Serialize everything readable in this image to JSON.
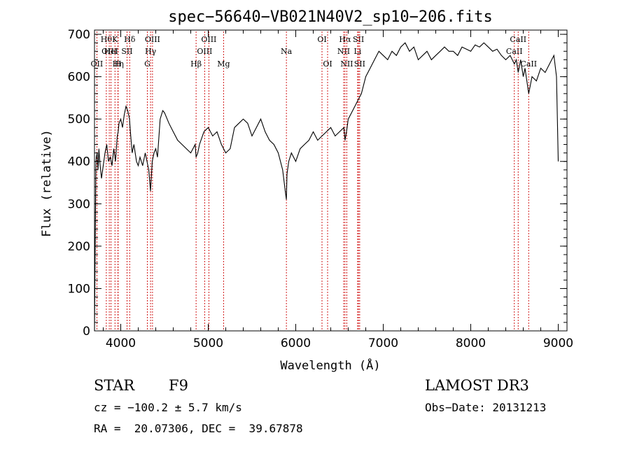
{
  "chart_data": {
    "type": "line",
    "title": "spec−56640−VB021N40V2_sp10−206.fits",
    "xlabel": "Wavelength (Å)",
    "ylabel": "Flux (relative)",
    "xlim": [
      3700,
      9100
    ],
    "ylim": [
      0,
      710
    ],
    "xticks": [
      4000,
      5000,
      6000,
      7000,
      8000,
      9000
    ],
    "yticks": [
      0,
      100,
      200,
      300,
      400,
      500,
      600,
      700
    ],
    "grid": false,
    "series": [
      {
        "x": [
          3700,
          3705,
          3710,
          3715,
          3720,
          3730,
          3740,
          3750,
          3760,
          3780,
          3800,
          3820,
          3840,
          3860,
          3880,
          3900,
          3920,
          3940,
          3960,
          3970,
          3980,
          4000,
          4020,
          4040,
          4060,
          4080,
          4100,
          4110,
          4130,
          4150,
          4180,
          4200,
          4220,
          4250,
          4280,
          4300,
          4320,
          4340,
          4360,
          4380,
          4400,
          4420,
          4450,
          4480,
          4500,
          4550,
          4600,
          4650,
          4700,
          4750,
          4800,
          4850,
          4861,
          4880,
          4900,
          4950,
          5000,
          5050,
          5100,
          5150,
          5200,
          5250,
          5300,
          5350,
          5400,
          5450,
          5500,
          5550,
          5600,
          5650,
          5700,
          5750,
          5800,
          5850,
          5880,
          5893,
          5900,
          5920,
          5950,
          6000,
          6050,
          6100,
          6150,
          6200,
          6250,
          6300,
          6350,
          6400,
          6450,
          6500,
          6550,
          6563,
          6580,
          6600,
          6650,
          6700,
          6750,
          6800,
          6850,
          6900,
          6950,
          7000,
          7050,
          7100,
          7150,
          7200,
          7250,
          7300,
          7350,
          7400,
          7450,
          7500,
          7550,
          7600,
          7650,
          7700,
          7750,
          7800,
          7850,
          7900,
          7950,
          8000,
          8050,
          8100,
          8150,
          8200,
          8250,
          8300,
          8350,
          8400,
          8450,
          8498,
          8520,
          8542,
          8570,
          8600,
          8620,
          8662,
          8700,
          8750,
          8800,
          8850,
          8900,
          8950,
          8980,
          9000
        ],
        "y": [
          0,
          120,
          260,
          380,
          410,
          420,
          380,
          430,
          400,
          360,
          390,
          420,
          440,
          400,
          410,
          390,
          430,
          400,
          460,
          470,
          490,
          500,
          480,
          510,
          530,
          520,
          500,
          470,
          420,
          440,
          400,
          390,
          410,
          390,
          420,
          400,
          380,
          330,
          400,
          420,
          430,
          410,
          500,
          520,
          515,
          490,
          470,
          450,
          440,
          430,
          420,
          440,
          410,
          420,
          440,
          470,
          480,
          460,
          470,
          440,
          420,
          430,
          480,
          490,
          500,
          490,
          460,
          480,
          500,
          470,
          450,
          440,
          420,
          380,
          330,
          310,
          370,
          400,
          420,
          400,
          430,
          440,
          450,
          470,
          450,
          460,
          470,
          480,
          460,
          470,
          480,
          450,
          470,
          500,
          520,
          540,
          560,
          600,
          620,
          640,
          660,
          650,
          640,
          660,
          650,
          670,
          680,
          660,
          670,
          640,
          650,
          660,
          640,
          650,
          660,
          670,
          660,
          660,
          650,
          670,
          665,
          660,
          675,
          670,
          680,
          670,
          660,
          665,
          650,
          640,
          650,
          630,
          640,
          610,
          640,
          600,
          620,
          560,
          600,
          590,
          620,
          610,
          630,
          650,
          600,
          400
        ]
      }
    ],
    "line_markers": [
      {
        "wavelength": 3727,
        "label": "OII",
        "row": 3
      },
      {
        "wavelength": 3835,
        "label": "Hθ",
        "row": 1
      },
      {
        "wavelength": 3869,
        "label": "OIII",
        "row": 2
      },
      {
        "wavelength": 3889,
        "label": "HeI",
        "row": 2
      },
      {
        "wavelength": 3934,
        "label": "K",
        "row": 1
      },
      {
        "wavelength": 3970,
        "label": "Hη",
        "row": 3
      },
      {
        "wavelength": 3968,
        "label": "H",
        "row": 3
      },
      {
        "wavelength": 4072,
        "label": "SII",
        "row": 2
      },
      {
        "wavelength": 4102,
        "label": "Hδ",
        "row": 1
      },
      {
        "wavelength": 4304,
        "label": "G",
        "row": 3
      },
      {
        "wavelength": 4341,
        "label": "Hγ",
        "row": 2
      },
      {
        "wavelength": 4363,
        "label": "OIII",
        "row": 1
      },
      {
        "wavelength": 4861,
        "label": "Hβ",
        "row": 3
      },
      {
        "wavelength": 4959,
        "label": "OIII",
        "row": 2
      },
      {
        "wavelength": 5007,
        "label": "OIII",
        "row": 1
      },
      {
        "wavelength": 5175,
        "label": "Mg",
        "row": 3
      },
      {
        "wavelength": 5893,
        "label": "Na",
        "row": 2
      },
      {
        "wavelength": 6300,
        "label": "OI",
        "row": 1
      },
      {
        "wavelength": 6364,
        "label": "OI",
        "row": 3
      },
      {
        "wavelength": 6548,
        "label": "NII",
        "row": 2
      },
      {
        "wavelength": 6563,
        "label": "Hα",
        "row": 1
      },
      {
        "wavelength": 6583,
        "label": "NII",
        "row": 3
      },
      {
        "wavelength": 6707,
        "label": "Li",
        "row": 2
      },
      {
        "wavelength": 6717,
        "label": "SII",
        "row": 1
      },
      {
        "wavelength": 6731,
        "label": "SII",
        "row": 3
      },
      {
        "wavelength": 8498,
        "label": "CaII",
        "row": 2
      },
      {
        "wavelength": 8542,
        "label": "CaII",
        "row": 1
      },
      {
        "wavelength": 8662,
        "label": "CaII",
        "row": 3
      }
    ],
    "colors": {
      "spectrum": "#000000",
      "markers": "#cc0000",
      "axes": "#000000"
    }
  },
  "info": {
    "object_class": "STAR",
    "subclass": "F9",
    "survey": "LAMOST DR3",
    "velocity": "cz = −100.2 ± 5.7 km/s",
    "obs_date": "Obs−Date: 20131213",
    "coords": "RA =  20.07306, DEC =  39.67878"
  }
}
